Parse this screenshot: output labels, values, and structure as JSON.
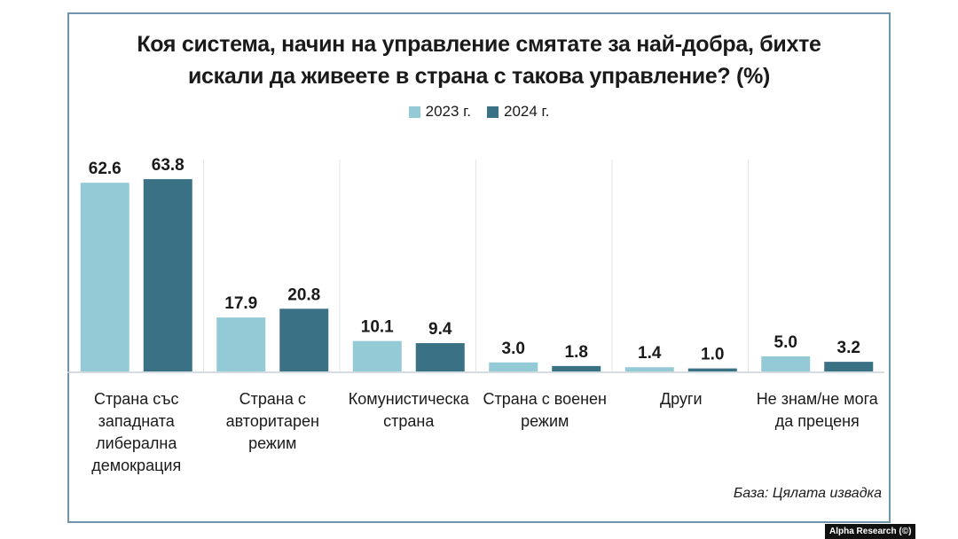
{
  "chart_data": {
    "type": "bar",
    "title_lines": [
      "Коя система, начин на управление смятате за най-добра, бихте",
      "искали да живеете в страна с такова управление? (%)"
    ],
    "categories": [
      "Страна със западната либерална демокрация",
      "Страна с авторитарен режим",
      "Комунистическа страна",
      "Страна с военен режим",
      "Други",
      "Не знам/не мога да преценя"
    ],
    "category_lines": [
      [
        "Страна със",
        "западната",
        "либерална",
        "демокрация"
      ],
      [
        "Страна с",
        "авторитарен",
        "режим"
      ],
      [
        "Комунистическа",
        "страна"
      ],
      [
        "Страна с военен",
        "режим"
      ],
      [
        "Други"
      ],
      [
        "Не знам/не мога",
        "да преценя"
      ]
    ],
    "series": [
      {
        "name": "2023 г.",
        "color": "#93cad6",
        "values": [
          62.6,
          17.9,
          10.1,
          3.0,
          1.4,
          5.0
        ]
      },
      {
        "name": "2024 г.",
        "color": "#3b7185",
        "values": [
          63.8,
          20.8,
          9.4,
          1.8,
          1.0,
          3.2
        ]
      }
    ],
    "ylim": [
      0,
      70
    ],
    "grid": false,
    "legend_position": "top-center",
    "note": "База: Цялата извадка"
  },
  "credit": "Alpha Research (©)"
}
